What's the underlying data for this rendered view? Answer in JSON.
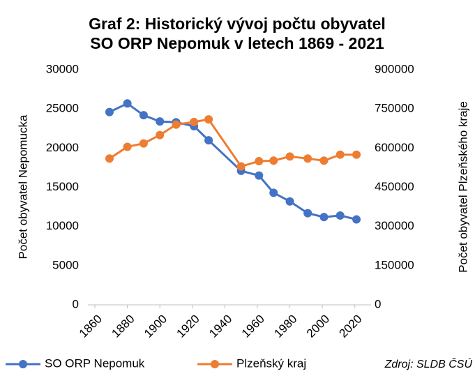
{
  "chart_data": {
    "type": "line",
    "title": [
      "Graf 2: Historický vývoj počtu obyvatel",
      "SO ORP Nepomuk v letech 1869 - 2021"
    ],
    "y_label": "Počet obyvatel Nepomucka",
    "y2_label": "Počet obyvatel Plzeňského kraje",
    "source": "Zdroj: SLDB ČSÚ",
    "x": [
      1869,
      1880,
      1890,
      1900,
      1910,
      1921,
      1930,
      1950,
      1961,
      1970,
      1980,
      1991,
      2001,
      2011,
      2021
    ],
    "series": [
      {
        "name": "SO ORP Nepomuk",
        "color": "#4472c4",
        "axis": "y",
        "values": [
          24600,
          25700,
          24200,
          23400,
          23300,
          22800,
          21000,
          17100,
          16500,
          14300,
          13200,
          11700,
          11200,
          11400,
          10900
        ]
      },
      {
        "name": "Plzeňský kraj",
        "color": "#ed7d31",
        "axis": "y2",
        "values": [
          560000,
          605000,
          618000,
          650000,
          690000,
          700000,
          710000,
          530000,
          550000,
          552000,
          568000,
          560000,
          552000,
          575000,
          575000
        ]
      }
    ],
    "xlim": [
      1860,
      2030
    ],
    "xticks": [
      1860,
      1880,
      1900,
      1920,
      1940,
      1960,
      1980,
      2000,
      2020
    ],
    "ylim": [
      0,
      30000
    ],
    "yticks": [
      0,
      5000,
      10000,
      15000,
      20000,
      25000,
      30000
    ],
    "y2lim": [
      0,
      900000
    ],
    "y2ticks": [
      0,
      150000,
      300000,
      450000,
      600000,
      750000,
      900000
    ],
    "grid": false,
    "legend": "bottom"
  }
}
